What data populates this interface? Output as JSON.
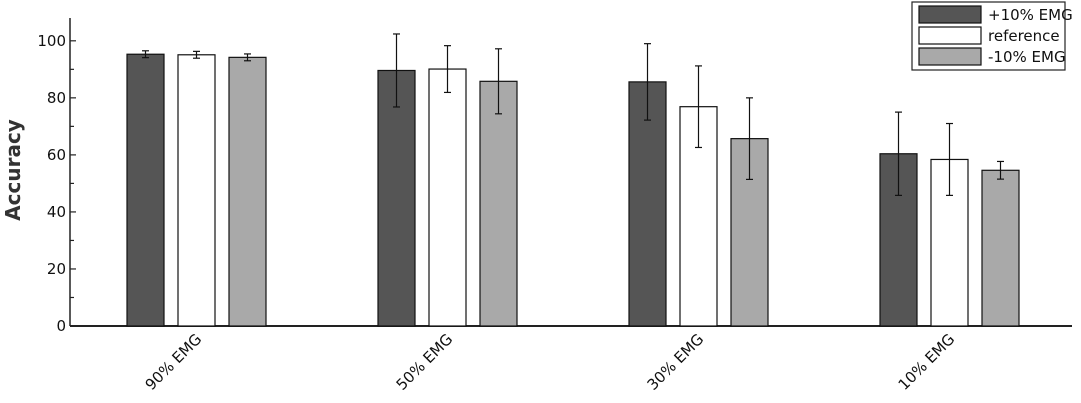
{
  "chart_data": {
    "type": "bar",
    "ylabel": "Accuracy",
    "ylim": [
      0,
      108
    ],
    "yticks": [
      0,
      20,
      40,
      60,
      80,
      100
    ],
    "ytick_labels": [
      "0",
      "20",
      "40",
      "60",
      "80",
      "100"
    ],
    "categories": [
      "90% EMG",
      "50% EMG",
      "30% EMG",
      "10% EMG"
    ],
    "series": [
      {
        "name": "+10% EMG",
        "color": "#555555",
        "values": [
          95.3,
          89.6,
          85.6,
          60.4
        ],
        "errors": [
          1.2,
          12.8,
          13.4,
          14.6
        ]
      },
      {
        "name": "reference",
        "color": "#ffffff",
        "values": [
          95.1,
          90.1,
          76.9,
          58.4
        ],
        "errors": [
          1.2,
          8.2,
          14.3,
          12.6
        ]
      },
      {
        "name": "-10% EMG",
        "color": "#a9a9a9",
        "values": [
          94.2,
          85.8,
          65.7,
          54.6
        ],
        "errors": [
          1.2,
          11.4,
          14.3,
          3.1
        ]
      }
    ],
    "error_bars": true,
    "grid": false,
    "legend_position": "top-right",
    "xtick_rotation": "45-degree"
  }
}
